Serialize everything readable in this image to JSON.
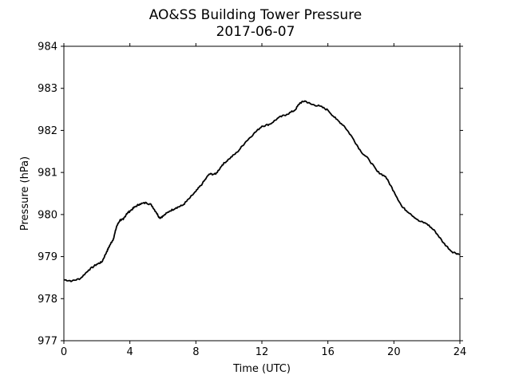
{
  "chart_data": {
    "type": "line",
    "title": "AO&SS Building Tower Pressure",
    "subtitle": "2017-06-07",
    "xlabel": "Time (UTC)",
    "ylabel": "Pressure (hPa)",
    "xlim": [
      0,
      24
    ],
    "ylim": [
      977,
      984
    ],
    "xticks": [
      0,
      4,
      8,
      12,
      16,
      20,
      24
    ],
    "yticks": [
      977,
      978,
      979,
      980,
      981,
      982,
      983,
      984
    ],
    "grid": false,
    "line_color": "#000000",
    "series": [
      {
        "x": [
          0,
          0.5,
          1,
          1.5,
          2,
          2.3,
          2.6,
          2.8,
          3.0,
          3.2,
          3.4,
          3.6,
          3.8,
          4.0,
          4.3,
          4.6,
          5.0,
          5.3,
          5.6,
          5.8,
          6.0,
          6.4,
          6.8,
          7.2,
          7.6,
          8.0,
          8.4,
          8.8,
          9.2,
          9.6,
          10.0,
          10.5,
          11.0,
          11.5,
          12.0,
          12.5,
          13.0,
          13.5,
          14.0,
          14.3,
          14.6,
          15.0,
          15.5,
          16.0,
          16.5,
          17.0,
          17.5,
          18.0,
          18.5,
          19.0,
          19.5,
          20.0,
          20.5,
          21.0,
          21.5,
          22.0,
          22.5,
          23.0,
          23.5,
          24.0
        ],
        "values": [
          978.45,
          978.42,
          978.48,
          978.68,
          978.82,
          978.87,
          979.12,
          979.28,
          979.42,
          979.72,
          979.87,
          979.88,
          980.02,
          980.08,
          980.18,
          980.25,
          980.28,
          980.23,
          980.05,
          979.92,
          979.96,
          980.08,
          980.16,
          980.22,
          980.38,
          980.55,
          980.74,
          980.96,
          980.96,
          981.18,
          981.32,
          981.48,
          981.72,
          981.92,
          982.1,
          982.15,
          982.3,
          982.38,
          982.48,
          982.65,
          982.7,
          982.62,
          982.58,
          982.48,
          982.27,
          982.1,
          981.82,
          981.5,
          981.3,
          981.02,
          980.9,
          980.55,
          980.18,
          980.02,
          979.85,
          979.78,
          979.6,
          979.33,
          979.12,
          979.05
        ]
      }
    ]
  }
}
